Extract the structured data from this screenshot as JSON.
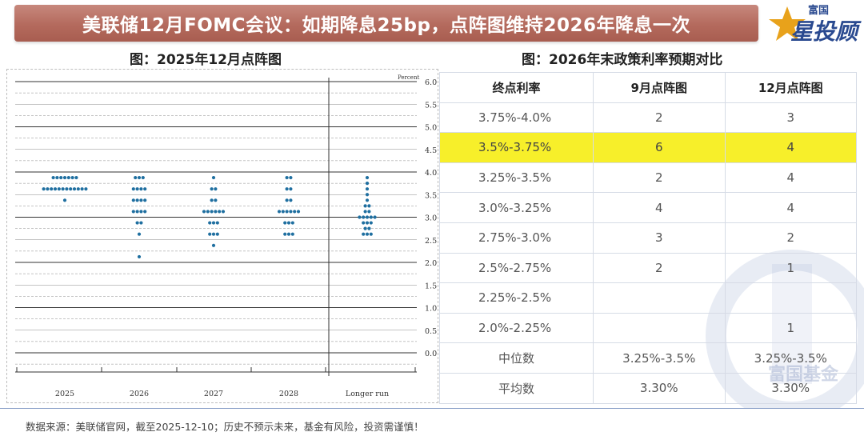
{
  "header": {
    "title": "美联储12月FOMC会议：如期降息25bp，点阵图维持2026年降息一次",
    "logo_small": "富国",
    "logo_big": "星投顾"
  },
  "left_panel": {
    "subtitle": "图：2025年12月点阵图"
  },
  "right_panel": {
    "subtitle": "图：2026年末政策利率预期对比"
  },
  "chart_data": [
    {
      "type": "scatter",
      "subtype": "dot-plot",
      "ylabel": "Percent",
      "ylim": [
        -0.25,
        6.0
      ],
      "yticks": [
        "6.0",
        "5.5",
        "5.0",
        "4.5",
        "4.0",
        "3.5",
        "3.0",
        "2.5",
        "2.0",
        "1.5",
        "1.0",
        "0.5",
        "0.0"
      ],
      "categories": [
        "2025",
        "2026",
        "2027",
        "2028",
        "Longer run"
      ],
      "grid": true,
      "dots": [
        {
          "category": "2025",
          "counts": [
            {
              "rate": 3.875,
              "n": 7
            },
            {
              "rate": 3.625,
              "n": 12
            },
            {
              "rate": 3.375,
              "n": 1
            }
          ]
        },
        {
          "category": "2026",
          "counts": [
            {
              "rate": 3.875,
              "n": 3
            },
            {
              "rate": 3.625,
              "n": 4
            },
            {
              "rate": 3.375,
              "n": 4
            },
            {
              "rate": 3.125,
              "n": 4
            },
            {
              "rate": 2.875,
              "n": 2
            },
            {
              "rate": 2.625,
              "n": 1
            },
            {
              "rate": 2.125,
              "n": 1
            }
          ]
        },
        {
          "category": "2027",
          "counts": [
            {
              "rate": 3.875,
              "n": 1
            },
            {
              "rate": 3.625,
              "n": 2
            },
            {
              "rate": 3.375,
              "n": 2
            },
            {
              "rate": 3.125,
              "n": 6
            },
            {
              "rate": 2.875,
              "n": 3
            },
            {
              "rate": 2.625,
              "n": 3
            },
            {
              "rate": 2.375,
              "n": 1
            }
          ]
        },
        {
          "category": "2028",
          "counts": [
            {
              "rate": 3.875,
              "n": 2
            },
            {
              "rate": 3.625,
              "n": 2
            },
            {
              "rate": 3.375,
              "n": 2
            },
            {
              "rate": 3.125,
              "n": 6
            },
            {
              "rate": 2.875,
              "n": 3
            },
            {
              "rate": 2.625,
              "n": 3
            }
          ]
        },
        {
          "category": "Longer run",
          "counts": [
            {
              "rate": 3.875,
              "n": 1
            },
            {
              "rate": 3.75,
              "n": 1
            },
            {
              "rate": 3.625,
              "n": 1
            },
            {
              "rate": 3.5,
              "n": 1
            },
            {
              "rate": 3.375,
              "n": 1
            },
            {
              "rate": 3.25,
              "n": 2
            },
            {
              "rate": 3.125,
              "n": 2
            },
            {
              "rate": 3.0,
              "n": 5
            },
            {
              "rate": 2.875,
              "n": 3
            },
            {
              "rate": 2.75,
              "n": 2
            },
            {
              "rate": 2.625,
              "n": 3
            }
          ]
        }
      ],
      "colors": {
        "dot": "#1f6fa0",
        "line": "#222222",
        "dashed": "#555555"
      }
    },
    {
      "type": "table",
      "columns": [
        "终点利率",
        "9月点阵图",
        "12月点阵图"
      ],
      "rows": [
        [
          "3.75%-4.0%",
          "2",
          "3"
        ],
        [
          "3.5%-3.75%",
          "6",
          "4"
        ],
        [
          "3.25%-3.5%",
          "2",
          "4"
        ],
        [
          "3.0%-3.25%",
          "4",
          "4"
        ],
        [
          "2.75%-3.0%",
          "3",
          "2"
        ],
        [
          "2.5%-2.75%",
          "2",
          "1"
        ],
        [
          "2.25%-2.5%",
          "",
          ""
        ],
        [
          "2.0%-2.25%",
          "",
          "1"
        ],
        [
          "中位数",
          "3.25%-3.5%",
          "3.25%-3.5%"
        ],
        [
          "平均数",
          "3.30%",
          "3.30%"
        ]
      ],
      "highlight_row": 1,
      "colors": {
        "highlight": "#f7ef2a",
        "border": "#d6dbe6"
      }
    }
  ],
  "watermark_text": "富国基金",
  "footnote": "数据来源：美联储官网，截至2025-12-10；历史不预示未来，基金有风险，投资需谨慎！"
}
